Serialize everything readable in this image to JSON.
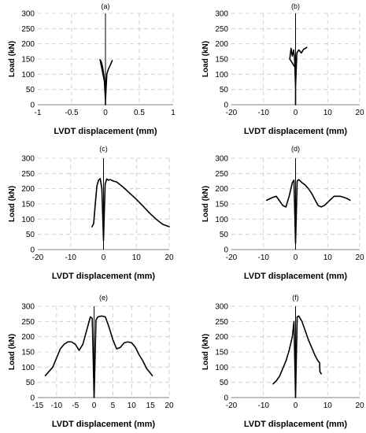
{
  "chart_data": [
    {
      "type": "line",
      "title": "(a)",
      "xlabel": "LVDT displacement (mm)",
      "ylabel": "Load (kN)",
      "xlim": [
        -1,
        1
      ],
      "ylim": [
        0,
        300
      ],
      "xticks": [
        "-1",
        "-0.5",
        "0",
        "0.5",
        "1"
      ],
      "yticks": [
        "0",
        "50",
        "100",
        "150",
        "200",
        "250",
        "300"
      ],
      "grid": true,
      "series": [
        {
          "x": [
            0,
            0,
            -0.08,
            -0.06,
            -0.04,
            -0.02,
            0,
            0.02,
            0.04,
            0.06,
            0.08,
            0.1
          ],
          "y": [
            0,
            60,
            148,
            140,
            120,
            90,
            15,
            100,
            115,
            125,
            135,
            145
          ]
        }
      ]
    },
    {
      "type": "line",
      "title": "(b)",
      "xlabel": "LVDT displacement (mm)",
      "ylabel": "Load (kN)",
      "xlim": [
        -20,
        20
      ],
      "ylim": [
        0,
        300
      ],
      "xticks": [
        "-20",
        "-10",
        "0",
        "10",
        "20"
      ],
      "yticks": [
        "0",
        "50",
        "100",
        "150",
        "200",
        "250",
        "300"
      ],
      "grid": true,
      "series": [
        {
          "x": [
            0,
            0,
            -1.8,
            -1.4,
            -1.0,
            -0.6,
            -0.3,
            0,
            0.4,
            1.0,
            1.8,
            2.5,
            3.5
          ],
          "y": [
            0,
            120,
            150,
            185,
            160,
            180,
            150,
            60,
            170,
            180,
            170,
            182,
            188
          ]
        }
      ]
    },
    {
      "type": "line",
      "title": "(c)",
      "xlabel": "LVDT displacement (mm)",
      "ylabel": "Load (kN)",
      "xlim": [
        -20,
        20
      ],
      "ylim": [
        0,
        300
      ],
      "xticks": [
        "-20",
        "-10",
        "0",
        "10",
        "20"
      ],
      "yticks": [
        "0",
        "50",
        "100",
        "150",
        "200",
        "250",
        "300"
      ],
      "grid": true,
      "series": [
        {
          "x": [
            -3.5,
            -3,
            -2.5,
            -2,
            -1.5,
            -1,
            -0.5,
            0,
            0.5,
            1,
            1.5,
            2,
            3,
            4,
            6,
            8,
            10,
            12,
            14,
            16,
            18,
            20
          ],
          "y": [
            75,
            85,
            150,
            210,
            228,
            233,
            200,
            30,
            215,
            232,
            228,
            230,
            225,
            222,
            205,
            185,
            165,
            143,
            120,
            100,
            83,
            75
          ]
        }
      ]
    },
    {
      "type": "line",
      "title": "(d)",
      "xlabel": "LVDT displacement (mm)",
      "ylabel": "Load (kN)",
      "xlim": [
        -20,
        20
      ],
      "ylim": [
        0,
        300
      ],
      "xticks": [
        "-20",
        "-10",
        "0",
        "10",
        "20"
      ],
      "yticks": [
        "0",
        "50",
        "100",
        "150",
        "200",
        "250",
        "300"
      ],
      "grid": true,
      "series": [
        {
          "x": [
            -9,
            -7,
            -6,
            -5,
            -4,
            -3,
            -2,
            -1,
            -0.5,
            0,
            0.5,
            1,
            2,
            3,
            4,
            5,
            6,
            7,
            8,
            9,
            10,
            12,
            14,
            16,
            17
          ],
          "y": [
            162,
            172,
            175,
            160,
            145,
            140,
            175,
            220,
            228,
            20,
            225,
            230,
            220,
            212,
            200,
            185,
            165,
            145,
            140,
            145,
            155,
            175,
            175,
            168,
            162
          ]
        }
      ]
    },
    {
      "type": "line",
      "title": "(e)",
      "xlabel": "LVDT displacement (mm)",
      "ylabel": "Load (kN)",
      "xlim": [
        -15,
        20
      ],
      "ylim": [
        0,
        300
      ],
      "xticks": [
        "-15",
        "-10",
        "-5",
        "0",
        "5",
        "10",
        "15",
        "20"
      ],
      "yticks": [
        "0",
        "50",
        "100",
        "150",
        "200",
        "250",
        "300"
      ],
      "grid": true,
      "series": [
        {
          "x": [
            -13,
            -11,
            -10,
            -9,
            -8,
            -7,
            -6,
            -5,
            -4,
            -3,
            -2,
            -1,
            -0.5,
            0,
            0.5,
            1,
            2,
            3,
            4,
            5,
            6,
            7,
            8,
            9,
            10,
            11,
            12,
            13,
            14,
            15.5
          ],
          "y": [
            72,
            100,
            130,
            160,
            175,
            183,
            183,
            175,
            155,
            175,
            220,
            265,
            260,
            0,
            255,
            265,
            268,
            265,
            230,
            190,
            160,
            165,
            180,
            183,
            180,
            165,
            140,
            120,
            95,
            72
          ]
        }
      ]
    },
    {
      "type": "line",
      "title": "(f)",
      "xlabel": "LVDT displacement (mm)",
      "ylabel": "Load (kN)",
      "xlim": [
        -20,
        20
      ],
      "ylim": [
        0,
        300
      ],
      "xticks": [
        "-20",
        "-10",
        "0",
        "10",
        "20"
      ],
      "yticks": [
        "0",
        "50",
        "100",
        "150",
        "200",
        "250",
        "300"
      ],
      "grid": true,
      "series": [
        {
          "x": [
            -7,
            -6,
            -5,
            -4,
            -3,
            -2,
            -1,
            -0.5,
            0,
            0.5,
            1,
            2,
            3,
            4,
            5,
            6,
            7,
            7.5,
            7.6,
            8
          ],
          "y": [
            45,
            55,
            70,
            95,
            120,
            155,
            200,
            250,
            0,
            265,
            268,
            250,
            220,
            190,
            165,
            140,
            120,
            115,
            85,
            78
          ]
        }
      ]
    }
  ]
}
